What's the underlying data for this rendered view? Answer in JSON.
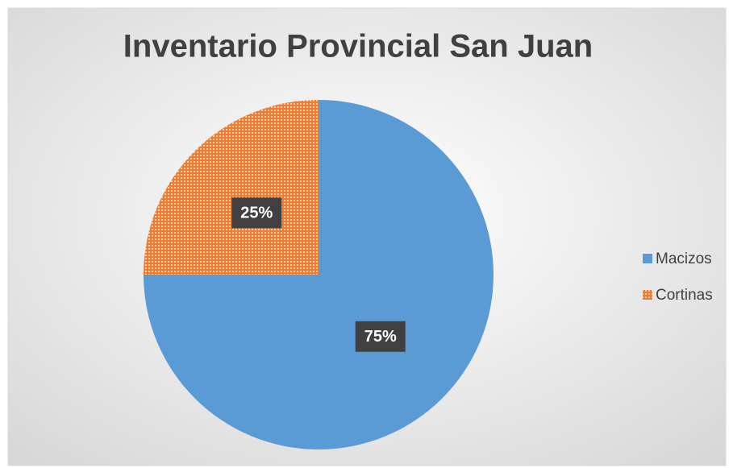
{
  "chart_data": {
    "type": "pie",
    "title": "Inventario Provincial San Juan",
    "categories": [
      "Macizos",
      "Cortinas"
    ],
    "values": [
      75,
      25
    ],
    "value_labels": [
      "75%",
      "25%"
    ],
    "colors": [
      "#5b9bd5",
      "#ed7d31"
    ],
    "legend": "right"
  }
}
